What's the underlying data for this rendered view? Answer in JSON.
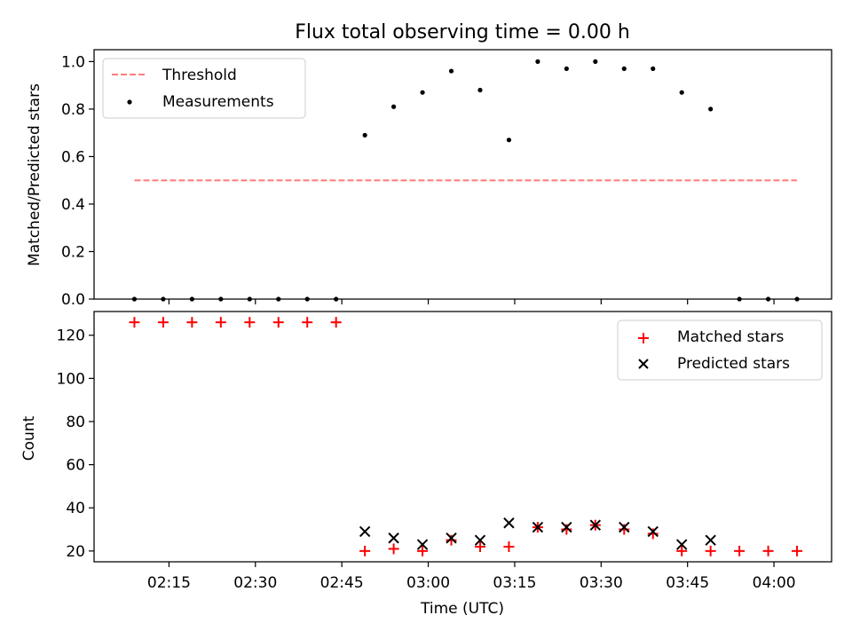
{
  "chart_data": [
    {
      "type": "scatter",
      "title": "Flux total observing time = 0.00 h",
      "ylabel": "Matched/Predicted stars",
      "xlabel": "",
      "ylim": [
        0,
        1.05
      ],
      "yticks": [
        0.0,
        0.2,
        0.4,
        0.6,
        0.8,
        1.0
      ],
      "ytick_labels": [
        "0.0",
        "0.2",
        "0.4",
        "0.6",
        "0.8",
        "1.0"
      ],
      "xticks": [
        "02:15",
        "02:30",
        "02:45",
        "03:00",
        "03:15",
        "03:30",
        "03:45",
        "04:00"
      ],
      "legend_position": "top-left",
      "series": [
        {
          "name": "Threshold",
          "style": "dashed-line",
          "color": "#ff7b7b",
          "points": [
            {
              "x": "02:09",
              "y": 0.5
            },
            {
              "x": "04:04",
              "y": 0.5
            }
          ]
        },
        {
          "name": "Measurements",
          "style": "dot",
          "color": "#000000",
          "points": [
            {
              "x": "02:09",
              "y": 0.0
            },
            {
              "x": "02:14",
              "y": 0.0
            },
            {
              "x": "02:19",
              "y": 0.0
            },
            {
              "x": "02:24",
              "y": 0.0
            },
            {
              "x": "02:29",
              "y": 0.0
            },
            {
              "x": "02:34",
              "y": 0.0
            },
            {
              "x": "02:39",
              "y": 0.0
            },
            {
              "x": "02:44",
              "y": 0.0
            },
            {
              "x": "02:49",
              "y": 0.69
            },
            {
              "x": "02:54",
              "y": 0.81
            },
            {
              "x": "02:59",
              "y": 0.87
            },
            {
              "x": "03:04",
              "y": 0.96
            },
            {
              "x": "03:09",
              "y": 0.88
            },
            {
              "x": "03:14",
              "y": 0.67
            },
            {
              "x": "03:19",
              "y": 1.0
            },
            {
              "x": "03:24",
              "y": 0.97
            },
            {
              "x": "03:29",
              "y": 1.0
            },
            {
              "x": "03:34",
              "y": 0.97
            },
            {
              "x": "03:39",
              "y": 0.97
            },
            {
              "x": "03:44",
              "y": 0.87
            },
            {
              "x": "03:49",
              "y": 0.8
            },
            {
              "x": "03:54",
              "y": 0.0
            },
            {
              "x": "03:59",
              "y": 0.0
            },
            {
              "x": "04:04",
              "y": 0.0
            }
          ]
        }
      ]
    },
    {
      "type": "scatter",
      "title": "",
      "ylabel": "Count",
      "xlabel": "Time (UTC)",
      "ylim": [
        15,
        131
      ],
      "yticks": [
        20,
        40,
        60,
        80,
        100,
        120
      ],
      "ytick_labels": [
        "20",
        "40",
        "60",
        "80",
        "100",
        "120"
      ],
      "xticks": [
        "02:15",
        "02:30",
        "02:45",
        "03:00",
        "03:15",
        "03:30",
        "03:45",
        "04:00"
      ],
      "legend_position": "top-right",
      "series": [
        {
          "name": "Matched stars",
          "style": "plus",
          "color": "#ff0000",
          "points": [
            {
              "x": "02:09",
              "y": 126
            },
            {
              "x": "02:14",
              "y": 126
            },
            {
              "x": "02:19",
              "y": 126
            },
            {
              "x": "02:24",
              "y": 126
            },
            {
              "x": "02:29",
              "y": 126
            },
            {
              "x": "02:34",
              "y": 126
            },
            {
              "x": "02:39",
              "y": 126
            },
            {
              "x": "02:44",
              "y": 126
            },
            {
              "x": "02:49",
              "y": 20
            },
            {
              "x": "02:54",
              "y": 21
            },
            {
              "x": "02:59",
              "y": 20
            },
            {
              "x": "03:04",
              "y": 25
            },
            {
              "x": "03:09",
              "y": 22
            },
            {
              "x": "03:14",
              "y": 22
            },
            {
              "x": "03:19",
              "y": 31
            },
            {
              "x": "03:24",
              "y": 30
            },
            {
              "x": "03:29",
              "y": 32
            },
            {
              "x": "03:34",
              "y": 30
            },
            {
              "x": "03:39",
              "y": 28
            },
            {
              "x": "03:44",
              "y": 20
            },
            {
              "x": "03:49",
              "y": 20
            },
            {
              "x": "03:54",
              "y": 20
            },
            {
              "x": "03:59",
              "y": 20
            },
            {
              "x": "04:04",
              "y": 20
            }
          ]
        },
        {
          "name": "Predicted stars",
          "style": "x",
          "color": "#000000",
          "points": [
            {
              "x": "02:49",
              "y": 29
            },
            {
              "x": "02:54",
              "y": 26
            },
            {
              "x": "02:59",
              "y": 23
            },
            {
              "x": "03:04",
              "y": 26
            },
            {
              "x": "03:09",
              "y": 25
            },
            {
              "x": "03:14",
              "y": 33
            },
            {
              "x": "03:19",
              "y": 31
            },
            {
              "x": "03:24",
              "y": 31
            },
            {
              "x": "03:29",
              "y": 32
            },
            {
              "x": "03:34",
              "y": 31
            },
            {
              "x": "03:39",
              "y": 29
            },
            {
              "x": "03:44",
              "y": 23
            },
            {
              "x": "03:49",
              "y": 25
            }
          ]
        }
      ]
    }
  ]
}
